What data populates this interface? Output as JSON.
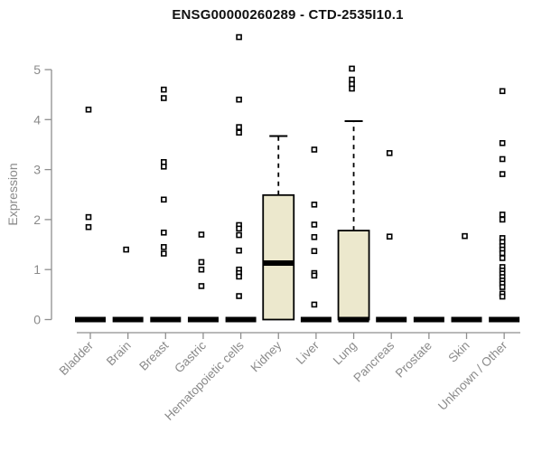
{
  "colors": {
    "background": "#ffffff",
    "title": "#111111",
    "axis": "#8f8f8f",
    "tick_label": "#8a8a8a",
    "box_fill": "#ECE8CD",
    "box_border": "#000000",
    "median": "#000000",
    "outlier_stroke": "#000000",
    "outlier_fill": "#ffffff"
  },
  "chart_data": {
    "type": "boxplot",
    "title": "ENSG00000260289 - CTD-2535I10.1",
    "ylabel": "Expression",
    "ylim": [
      0,
      5.65
    ],
    "yticks": [
      0,
      1,
      2,
      3,
      4,
      5
    ],
    "grid": false,
    "legend": false,
    "categories": [
      "Bladder",
      "Brain",
      "Breast",
      "Gastric",
      "Hematopoietic cells",
      "Kidney",
      "Liver",
      "Lung",
      "Pancreas",
      "Prostate",
      "Skin",
      "Unknown / Other"
    ],
    "series": [
      {
        "name": "Bladder",
        "whisker_low": 0,
        "q1": 0,
        "median": 0,
        "q3": 0,
        "whisker_high": 0,
        "outliers": [
          4.2,
          2.05,
          1.85
        ]
      },
      {
        "name": "Brain",
        "whisker_low": 0,
        "q1": 0,
        "median": 0,
        "q3": 0,
        "whisker_high": 0,
        "outliers": [
          1.4
        ]
      },
      {
        "name": "Breast",
        "whisker_low": 0,
        "q1": 0,
        "median": 0,
        "q3": 0,
        "whisker_high": 0,
        "outliers": [
          4.6,
          4.43,
          3.15,
          3.06,
          2.4,
          1.74,
          1.45,
          1.32
        ]
      },
      {
        "name": "Gastric",
        "whisker_low": 0,
        "q1": 0,
        "median": 0,
        "q3": 0,
        "whisker_high": 0,
        "outliers": [
          1.7,
          1.15,
          1.0,
          0.67
        ]
      },
      {
        "name": "Hematopoietic cells",
        "whisker_low": 0,
        "q1": 0,
        "median": 0,
        "q3": 0,
        "whisker_high": 0,
        "outliers": [
          5.65,
          4.4,
          3.85,
          3.74,
          1.89,
          1.82,
          1.69,
          1.38,
          1.0,
          0.93,
          0.86,
          0.47
        ]
      },
      {
        "name": "Kidney",
        "whisker_low": 0,
        "q1": 0,
        "median": 1.13,
        "q3": 2.49,
        "whisker_high": 3.67,
        "outliers": []
      },
      {
        "name": "Liver",
        "whisker_low": 0,
        "q1": 0,
        "median": 0,
        "q3": 0,
        "whisker_high": 0,
        "outliers": [
          3.4,
          2.3,
          1.9,
          1.65,
          1.37,
          0.93,
          0.88,
          0.3
        ]
      },
      {
        "name": "Lung",
        "whisker_low": 0,
        "q1": 0,
        "median": 0,
        "q3": 1.78,
        "whisker_high": 3.97,
        "outliers": [
          5.02,
          4.8,
          4.71,
          4.62
        ]
      },
      {
        "name": "Pancreas",
        "whisker_low": 0,
        "q1": 0,
        "median": 0,
        "q3": 0,
        "whisker_high": 0,
        "outliers": [
          3.33,
          1.66
        ]
      },
      {
        "name": "Prostate",
        "whisker_low": 0,
        "q1": 0,
        "median": 0,
        "q3": 0,
        "whisker_high": 0,
        "outliers": []
      },
      {
        "name": "Skin",
        "whisker_low": 0,
        "q1": 0,
        "median": 0,
        "q3": 0,
        "whisker_high": 0,
        "outliers": [
          1.67
        ]
      },
      {
        "name": "Unknown / Other",
        "whisker_low": 0,
        "q1": 0,
        "median": 0,
        "q3": 0,
        "whisker_high": 0,
        "outliers": [
          4.57,
          3.53,
          3.21,
          2.91,
          2.1,
          2.0,
          1.63,
          1.55,
          1.47,
          1.4,
          1.33,
          1.23,
          1.05,
          0.98,
          0.92,
          0.85,
          0.78,
          0.72,
          0.65,
          0.52,
          0.46
        ]
      }
    ]
  }
}
